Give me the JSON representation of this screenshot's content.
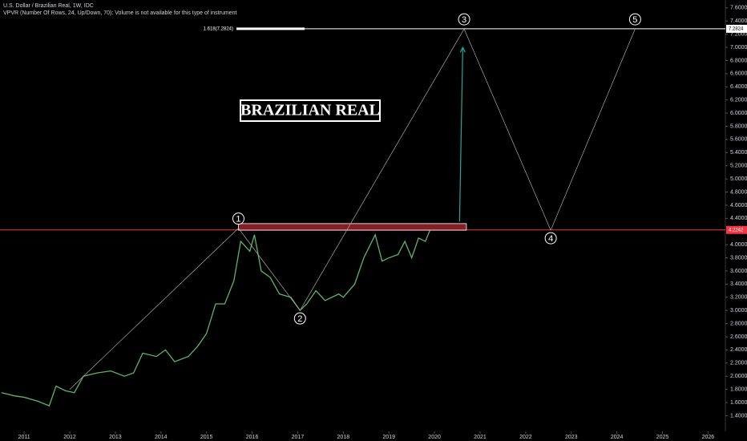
{
  "header": {
    "symbol": "U.S. Dollar / Brazilian Real, 1W, IDC",
    "indicator": "VPVR (Number Of Rows, 24, Up/Down, 70): Volume is not available for this type of instrument"
  },
  "chart_data": {
    "type": "line",
    "title": "BRAZILIAN REAL",
    "color": "#5fb36a",
    "x": [
      2010.5,
      2010.8,
      2011.0,
      2011.3,
      2011.55,
      2011.7,
      2011.9,
      2012.1,
      2012.3,
      2012.6,
      2012.9,
      2013.2,
      2013.4,
      2013.6,
      2013.9,
      2014.1,
      2014.3,
      2014.6,
      2014.8,
      2015.0,
      2015.2,
      2015.4,
      2015.6,
      2015.75,
      2015.95,
      2016.05,
      2016.2,
      2016.4,
      2016.6,
      2016.85,
      2017.05,
      2017.2,
      2017.4,
      2017.6,
      2017.9,
      2018.0,
      2018.25,
      2018.45,
      2018.7,
      2018.85,
      2019.0,
      2019.2,
      2019.35,
      2019.5,
      2019.65,
      2019.8,
      2019.9
    ],
    "values": [
      1.75,
      1.7,
      1.68,
      1.62,
      1.55,
      1.85,
      1.78,
      1.75,
      2.0,
      2.05,
      2.08,
      2.0,
      2.05,
      2.35,
      2.3,
      2.4,
      2.22,
      2.3,
      2.45,
      2.65,
      3.1,
      3.1,
      3.45,
      4.05,
      3.9,
      4.15,
      3.6,
      3.5,
      3.25,
      3.2,
      3.0,
      3.1,
      3.3,
      3.15,
      3.25,
      3.2,
      3.4,
      3.8,
      4.15,
      3.75,
      3.8,
      3.85,
      4.05,
      3.8,
      4.1,
      4.05,
      4.22
    ],
    "xlim": [
      2010.47,
      2026.38
    ],
    "ylim": [
      1.21,
      7.72
    ],
    "xticks": [
      2011,
      2012,
      2013,
      2014,
      2015,
      2016,
      2017,
      2018,
      2019,
      2020,
      2021,
      2022,
      2023,
      2024,
      2025,
      2026
    ],
    "yticks": [
      {
        "value": 1.4,
        "label": "1.4000"
      },
      {
        "value": 1.6,
        "label": "1.6000"
      },
      {
        "value": 1.8,
        "label": "1.8000"
      },
      {
        "value": 2.0,
        "label": "2.0000"
      },
      {
        "value": 2.2,
        "label": "2.2000"
      },
      {
        "value": 2.4,
        "label": "2.4000"
      },
      {
        "value": 2.6,
        "label": "2.6000"
      },
      {
        "value": 2.8,
        "label": "2.8000"
      },
      {
        "value": 3.0,
        "label": "3.0000"
      },
      {
        "value": 3.2,
        "label": "3.2000"
      },
      {
        "value": 3.4,
        "label": "3.4000"
      },
      {
        "value": 3.6,
        "label": "3.6000"
      },
      {
        "value": 3.8,
        "label": "3.8000"
      },
      {
        "value": 4.0,
        "label": "4.0000"
      },
      {
        "value": 4.4,
        "label": "4.4000"
      },
      {
        "value": 4.6,
        "label": "4.6000"
      },
      {
        "value": 4.8,
        "label": "4.8000"
      },
      {
        "value": 5.0,
        "label": "5.0000"
      },
      {
        "value": 5.2,
        "label": "5.2000"
      },
      {
        "value": 5.4,
        "label": "5.4000"
      },
      {
        "value": 5.6,
        "label": "5.6000"
      },
      {
        "value": 5.8,
        "label": "5.8000"
      },
      {
        "value": 6.0,
        "label": "6.0000"
      },
      {
        "value": 6.2,
        "label": "6.2000"
      },
      {
        "value": 6.4,
        "label": "6.4000"
      },
      {
        "value": 6.6,
        "label": "6.6000"
      },
      {
        "value": 6.8,
        "label": "6.8000"
      },
      {
        "value": 7.0,
        "label": "7.0000"
      },
      {
        "value": 7.2,
        "label": "7.2000"
      },
      {
        "value": 7.4,
        "label": "7.4000"
      },
      {
        "value": 7.6,
        "label": "7.6000"
      }
    ],
    "levels": [
      {
        "value": 4.2242,
        "label": "4.2242",
        "color": "#f23645"
      },
      {
        "value": 7.2824,
        "label": "7.2824",
        "color": "#ffffff",
        "fib_label": "1.618(7.2824)"
      }
    ],
    "trend_start": {
      "x": 2012.0,
      "y": 1.8
    },
    "waves": [
      {
        "label": "1",
        "x": 2015.7,
        "y": 4.25
      },
      {
        "label": "2",
        "x": 2017.05,
        "y": 3.0
      },
      {
        "label": "3",
        "x": 2020.65,
        "y": 7.28
      },
      {
        "label": "4",
        "x": 2022.55,
        "y": 4.22
      },
      {
        "label": "5",
        "x": 2024.4,
        "y": 7.28
      }
    ],
    "box": {
      "x": [
        2015.7,
        2020.7
      ],
      "y": [
        4.22,
        4.32
      ]
    },
    "arrow": {
      "x": [
        2020.55,
        2020.62
      ],
      "y": [
        4.35,
        7.0
      ],
      "color": "#26a69a"
    }
  }
}
